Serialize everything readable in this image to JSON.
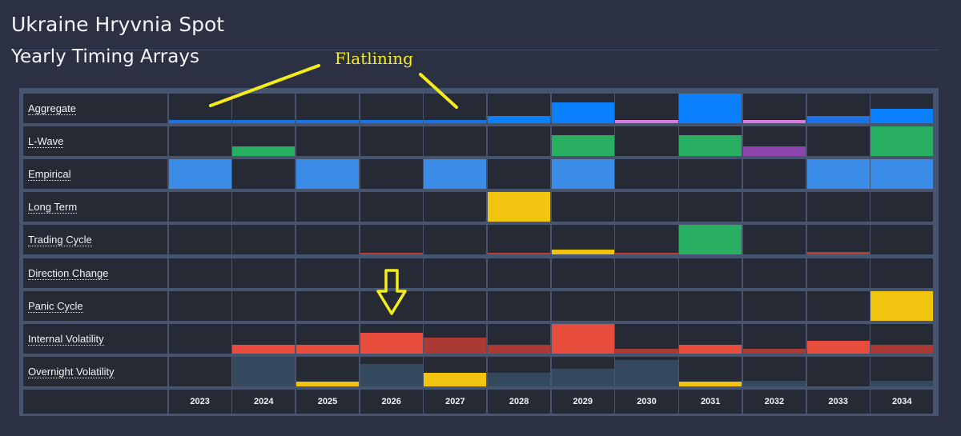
{
  "header": {
    "title": "Ukraine Hryvnia Spot",
    "subtitle": "Yearly Timing Arrays"
  },
  "annotations": {
    "flatlining_text": "Flatlining",
    "arrow_color": "#f5ec1a"
  },
  "chart_data": {
    "type": "heatmap",
    "title": "Yearly Timing Arrays",
    "categories": [
      "2023",
      "2024",
      "2025",
      "2026",
      "2027",
      "2028",
      "2029",
      "2030",
      "2031",
      "2032",
      "2033",
      "2034"
    ],
    "value_scale": "bar height as fraction of cell (0-1)",
    "series": [
      {
        "name": "Aggregate",
        "values": [
          0.12,
          0.12,
          0.12,
          0.12,
          0.12,
          0.25,
          0.7,
          0.12,
          1.0,
          0.12,
          0.25,
          0.48
        ],
        "colors": [
          "#1a72e8",
          "#1a72e8",
          "#1a72e8",
          "#1a72e8",
          "#1a72e8",
          "#0a80ff",
          "#0a80ff",
          "#d77ad9",
          "#0a80ff",
          "#d77ad9",
          "#1a72e8",
          "#0a80ff"
        ]
      },
      {
        "name": "L-Wave",
        "values": [
          0,
          0.32,
          0,
          0,
          0,
          0,
          0.7,
          0,
          0.7,
          0.32,
          0,
          1.0
        ],
        "colors": [
          "",
          "#27ae60",
          "",
          "",
          "",
          "",
          "#27ae60",
          "",
          "#27ae60",
          "#8e44ad",
          "",
          "#27ae60"
        ]
      },
      {
        "name": "Empirical",
        "values": [
          1.0,
          0,
          1.0,
          0,
          1.0,
          0,
          1.0,
          0,
          0,
          0,
          1.0,
          1.0
        ],
        "colors": [
          "#3b8ce6",
          "",
          "#3b8ce6",
          "",
          "#3b8ce6",
          "",
          "#3b8ce6",
          "",
          "",
          "",
          "#3b8ce6",
          "#3b8ce6"
        ]
      },
      {
        "name": "Long Term",
        "values": [
          0,
          0,
          0,
          0,
          0,
          1.0,
          0,
          0,
          0,
          0,
          0,
          0
        ],
        "colors": [
          "",
          "",
          "",
          "",
          "",
          "#f1c40f",
          "",
          "",
          "",
          "",
          "",
          ""
        ]
      },
      {
        "name": "Trading Cycle",
        "values": [
          0,
          0,
          0,
          0.05,
          0,
          0.05,
          0.16,
          0.05,
          1.0,
          0,
          0.08,
          0
        ],
        "colors": [
          "",
          "",
          "",
          "#c0392b",
          "",
          "#c0392b",
          "#f1c40f",
          "#c0392b",
          "#27ae60",
          "",
          "#c0392b",
          ""
        ]
      },
      {
        "name": "Direction Change",
        "values": [
          0,
          0,
          0,
          0,
          0,
          0,
          0,
          0,
          0,
          0,
          0,
          0
        ],
        "colors": [
          "",
          "",
          "",
          "",
          "",
          "",
          "",
          "",
          "",
          "",
          "",
          ""
        ]
      },
      {
        "name": "Panic Cycle",
        "values": [
          0,
          0,
          0,
          0,
          0,
          0,
          0,
          0,
          0,
          0,
          0,
          1.0
        ],
        "colors": [
          "",
          "",
          "",
          "",
          "",
          "",
          "",
          "",
          "",
          "",
          "",
          "#f1c40f"
        ]
      },
      {
        "name": "Internal Volatility",
        "values": [
          0,
          0.3,
          0.3,
          0.7,
          0.55,
          0.3,
          1.0,
          0.15,
          0.3,
          0.15,
          0.42,
          0.3
        ],
        "colors": [
          "",
          "#e74c3c",
          "#e74c3c",
          "#e74c3c",
          "#a93a33",
          "#a93a33",
          "#e74c3c",
          "#a93a33",
          "#e74c3c",
          "#a93a33",
          "#e74c3c",
          "#a93a33"
        ]
      },
      {
        "name": "Overnight Volatility",
        "values": [
          0,
          1.0,
          0.16,
          0.75,
          0.45,
          0.45,
          0.6,
          0.9,
          0.16,
          0.18,
          0,
          0.18
        ],
        "colors": [
          "",
          "#34495e",
          "#f1c40f",
          "#34495e",
          "#f1c40f",
          "#34495e",
          "#34495e",
          "#34495e",
          "#f1c40f",
          "#34495e",
          "",
          "#34495e"
        ]
      }
    ]
  }
}
